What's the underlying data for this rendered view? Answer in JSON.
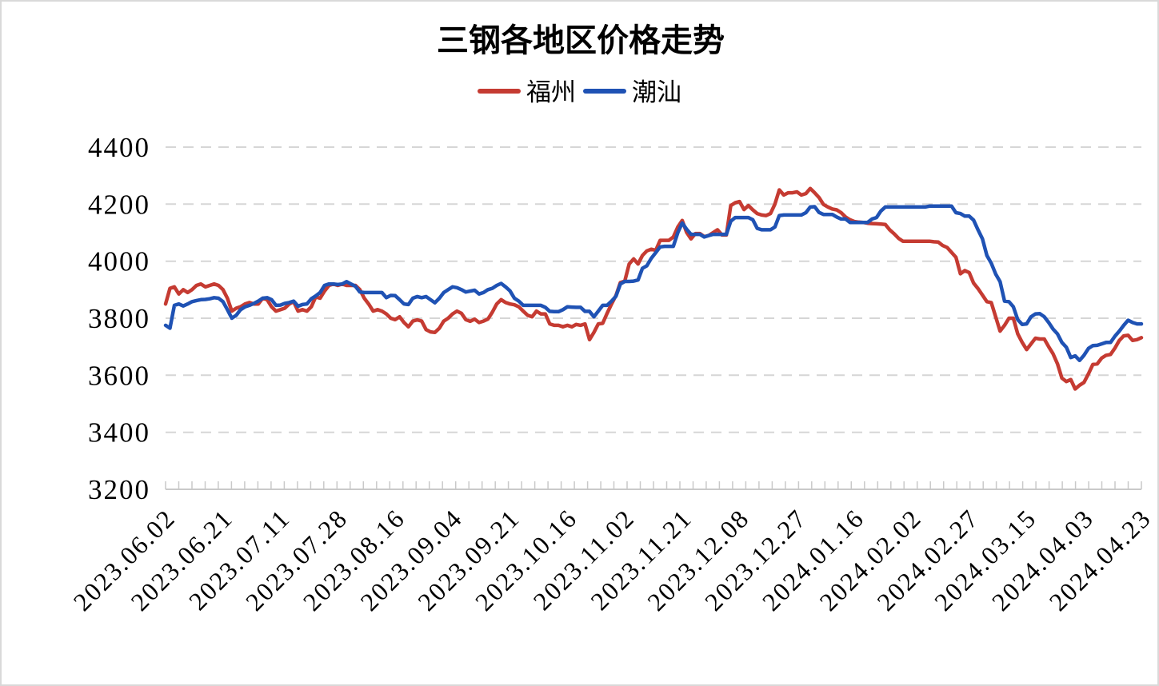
{
  "figure": {
    "background": "#ffffff",
    "border_color": "#d9d9d9"
  },
  "chart_data": {
    "type": "line",
    "title": "三钢各地区价格走势",
    "legend_position": "top-center",
    "grid": "horizontal-dashed",
    "ylim": [
      3200,
      4400
    ],
    "y_ticks": [
      3200,
      3400,
      3600,
      3800,
      4000,
      4200,
      4400
    ],
    "x_label_every": 13,
    "x_labels": [
      "2023.06.02",
      "2023.06.21",
      "2023.07.11",
      "2023.07.28",
      "2023.08.16",
      "2023.09.04",
      "2023.09.21",
      "2023.10.16",
      "2023.11.02",
      "2023.11.21",
      "2023.12.08",
      "2023.12.27",
      "2024.01.16",
      "2024.02.02",
      "2024.02.27",
      "2024.03.15",
      "2024.04.03",
      "2024.04.23"
    ],
    "series": [
      {
        "name": "福州",
        "key": "fuzhou",
        "color": "#c53b32",
        "values": [
          3850,
          3905,
          3910,
          3885,
          3900,
          3890,
          3900,
          3915,
          3920,
          3910,
          3915,
          3920,
          3915,
          3900,
          3870,
          3825,
          3835,
          3840,
          3850,
          3855,
          3850,
          3850,
          3870,
          3865,
          3840,
          3825,
          3830,
          3835,
          3850,
          3858,
          3825,
          3830,
          3825,
          3840,
          3875,
          3870,
          3895,
          3915,
          3920,
          3915,
          3920,
          3915,
          3915,
          3915,
          3900,
          3870,
          3850,
          3825,
          3830,
          3825,
          3815,
          3800,
          3795,
          3805,
          3785,
          3770,
          3790,
          3794,
          3790,
          3760,
          3752,
          3750,
          3765,
          3790,
          3800,
          3815,
          3825,
          3817,
          3795,
          3789,
          3797,
          3785,
          3790,
          3797,
          3821,
          3850,
          3865,
          3855,
          3850,
          3847,
          3840,
          3825,
          3810,
          3805,
          3825,
          3815,
          3815,
          3780,
          3775,
          3775,
          3770,
          3775,
          3770,
          3778,
          3775,
          3780,
          3725,
          3750,
          3780,
          3782,
          3817,
          3850,
          3880,
          3925,
          3930,
          3990,
          4008,
          3990,
          4020,
          4036,
          4042,
          4038,
          4073,
          4073,
          4073,
          4085,
          4120,
          4143,
          4101,
          4078,
          4097,
          4097,
          4086,
          4090,
          4100,
          4110,
          4092,
          4092,
          4195,
          4205,
          4209,
          4181,
          4195,
          4180,
          4167,
          4162,
          4160,
          4167,
          4200,
          4250,
          4232,
          4240,
          4240,
          4243,
          4232,
          4237,
          4255,
          4240,
          4223,
          4199,
          4190,
          4183,
          4180,
          4170,
          4155,
          4145,
          4139,
          4137,
          4136,
          4133,
          4132,
          4131,
          4130,
          4129,
          4110,
          4096,
          4080,
          4070,
          4070,
          4070,
          4070,
          4070,
          4070,
          4070,
          4068,
          4067,
          4055,
          4048,
          4031,
          4014,
          3956,
          3967,
          3960,
          3923,
          3904,
          3881,
          3858,
          3855,
          3805,
          3755,
          3775,
          3800,
          3800,
          3745,
          3715,
          3690,
          3710,
          3730,
          3727,
          3727,
          3700,
          3675,
          3640,
          3590,
          3578,
          3585,
          3552,
          3565,
          3575,
          3605,
          3638,
          3640,
          3660,
          3670,
          3673,
          3695,
          3722,
          3738,
          3740,
          3722,
          3725,
          3732
        ]
      },
      {
        "name": "潮汕",
        "key": "chaoshan",
        "color": "#1f52b4",
        "values": [
          3775,
          3765,
          3845,
          3850,
          3843,
          3850,
          3858,
          3862,
          3865,
          3866,
          3868,
          3872,
          3870,
          3858,
          3830,
          3800,
          3810,
          3830,
          3840,
          3845,
          3852,
          3860,
          3870,
          3872,
          3865,
          3845,
          3846,
          3852,
          3855,
          3860,
          3842,
          3848,
          3850,
          3868,
          3878,
          3890,
          3915,
          3920,
          3920,
          3918,
          3920,
          3928,
          3920,
          3912,
          3892,
          3890,
          3890,
          3890,
          3890,
          3890,
          3872,
          3880,
          3879,
          3865,
          3850,
          3848,
          3870,
          3876,
          3872,
          3876,
          3865,
          3854,
          3870,
          3890,
          3900,
          3910,
          3907,
          3900,
          3892,
          3895,
          3898,
          3885,
          3890,
          3900,
          3905,
          3915,
          3922,
          3910,
          3896,
          3870,
          3860,
          3845,
          3845,
          3845,
          3845,
          3845,
          3838,
          3824,
          3823,
          3823,
          3830,
          3840,
          3839,
          3838,
          3838,
          3824,
          3824,
          3805,
          3825,
          3845,
          3845,
          3860,
          3877,
          3920,
          3929,
          3929,
          3930,
          3934,
          3975,
          3984,
          4010,
          4030,
          4050,
          4052,
          4052,
          4052,
          4100,
          4134,
          4112,
          4094,
          4094,
          4094,
          4085,
          4090,
          4094,
          4094,
          4094,
          4094,
          4140,
          4153,
          4153,
          4153,
          4153,
          4145,
          4115,
          4110,
          4110,
          4110,
          4120,
          4160,
          4162,
          4162,
          4162,
          4162,
          4162,
          4170,
          4190,
          4191,
          4171,
          4164,
          4164,
          4164,
          4155,
          4148,
          4148,
          4136,
          4136,
          4136,
          4136,
          4136,
          4148,
          4153,
          4176,
          4190,
          4190,
          4190,
          4190,
          4190,
          4190,
          4190,
          4190,
          4190,
          4190,
          4193,
          4193,
          4193,
          4193,
          4193,
          4193,
          4170,
          4167,
          4158,
          4158,
          4144,
          4110,
          4078,
          4020,
          3993,
          3955,
          3928,
          3860,
          3858,
          3840,
          3795,
          3778,
          3780,
          3805,
          3815,
          3816,
          3805,
          3785,
          3762,
          3745,
          3715,
          3698,
          3662,
          3668,
          3652,
          3670,
          3694,
          3704,
          3705,
          3710,
          3715,
          3715,
          3737,
          3755,
          3775,
          3793,
          3785,
          3780,
          3780
        ]
      }
    ]
  }
}
